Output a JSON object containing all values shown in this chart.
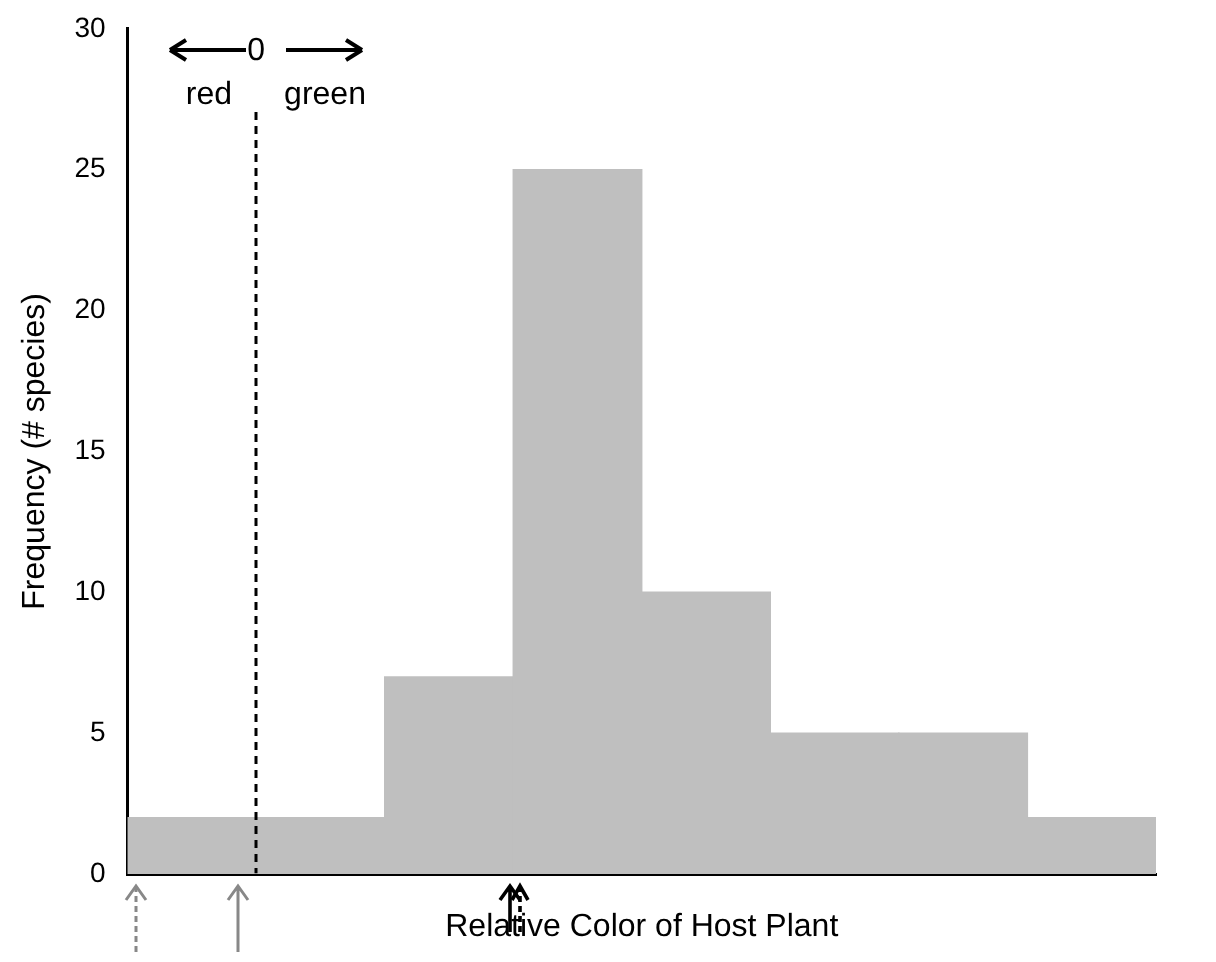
{
  "chart_data": {
    "type": "bar",
    "xlabel": "Relative Color of Host Plant",
    "ylabel": "Frequency (# species)",
    "categories": [
      null,
      null,
      null,
      null,
      null,
      null,
      null,
      null
    ],
    "values": [
      2,
      2,
      7,
      25,
      10,
      5,
      5,
      2
    ],
    "color": "#bfbfbf",
    "ylim": [
      0,
      30
    ],
    "yticks": [
      0,
      5,
      10,
      15,
      20,
      25,
      30
    ],
    "grid": false,
    "legend": false,
    "annotations": [
      "0",
      "red",
      "green"
    ]
  }
}
